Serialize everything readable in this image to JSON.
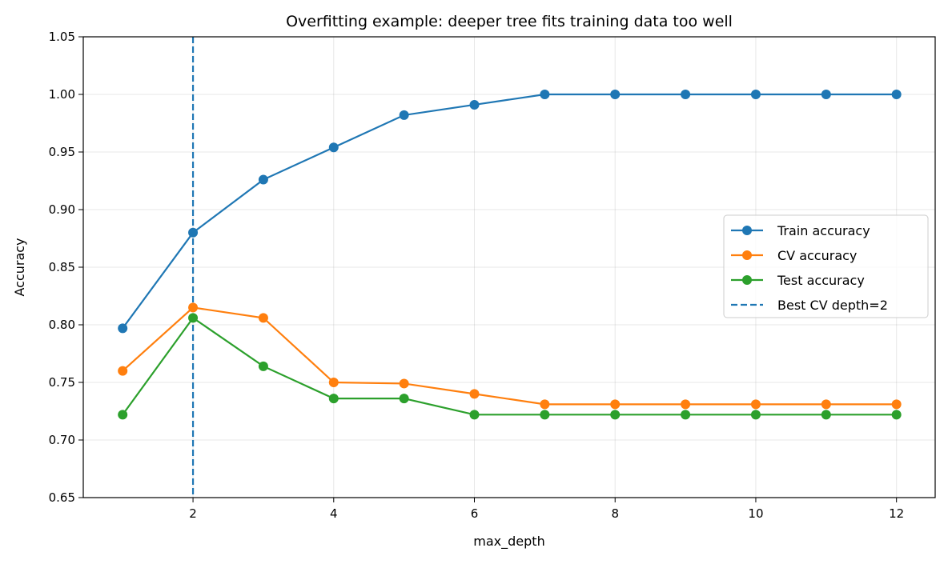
{
  "chart_data": {
    "type": "line",
    "title": "Overfitting example: deeper tree fits training data too well",
    "xlabel": "max_depth",
    "ylabel": "Accuracy",
    "xlim": [
      0.44,
      12.55
    ],
    "ylim": [
      0.65,
      1.05
    ],
    "xticks": [
      2,
      4,
      6,
      8,
      10,
      12
    ],
    "yticks": [
      0.65,
      0.7,
      0.75,
      0.8,
      0.85,
      0.9,
      0.95,
      1.0,
      1.05
    ],
    "ytick_labels": [
      "0.65",
      "0.70",
      "0.75",
      "0.80",
      "0.85",
      "0.90",
      "0.95",
      "1.00",
      "1.05"
    ],
    "grid": true,
    "legend_position": "center-right",
    "x": [
      1,
      2,
      3,
      4,
      5,
      6,
      7,
      8,
      9,
      10,
      11,
      12
    ],
    "series": [
      {
        "name": "Train accuracy",
        "color": "#1f77b4",
        "marker": "circle",
        "values": [
          0.797,
          0.88,
          0.926,
          0.954,
          0.982,
          0.991,
          1.0,
          1.0,
          1.0,
          1.0,
          1.0,
          1.0
        ]
      },
      {
        "name": "CV accuracy",
        "color": "#ff7f0e",
        "marker": "circle",
        "values": [
          0.76,
          0.815,
          0.806,
          0.75,
          0.749,
          0.74,
          0.731,
          0.731,
          0.731,
          0.731,
          0.731,
          0.731
        ]
      },
      {
        "name": "Test accuracy",
        "color": "#2ca02c",
        "marker": "circle",
        "values": [
          0.722,
          0.806,
          0.764,
          0.736,
          0.736,
          0.722,
          0.722,
          0.722,
          0.722,
          0.722,
          0.722,
          0.722
        ]
      }
    ],
    "vline": {
      "name": "Best CV depth=2",
      "x": 2,
      "color": "#1f77b4",
      "style": "dashed"
    }
  }
}
